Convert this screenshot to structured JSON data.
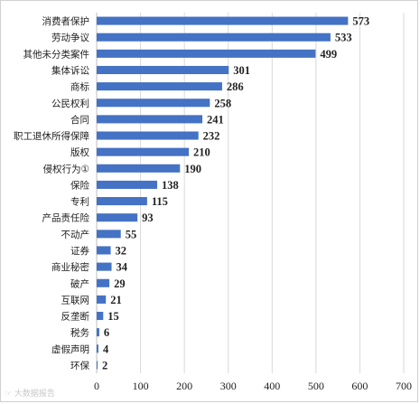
{
  "chart_data": {
    "type": "bar",
    "orientation": "horizontal",
    "categories": [
      "消费者保护",
      "劳动争议",
      "其他未分类案件",
      "集体诉讼",
      "商标",
      "公民权利",
      "合同",
      "职工退休所得保障",
      "版权",
      "侵权行为①",
      "保险",
      "专利",
      "产品责任险",
      "不动产",
      "证券",
      "商业秘密",
      "破产",
      "互联网",
      "反垄断",
      "税务",
      "虚假声明",
      "环保"
    ],
    "values": [
      573,
      533,
      499,
      301,
      286,
      258,
      241,
      232,
      210,
      190,
      138,
      115,
      93,
      55,
      32,
      34,
      29,
      21,
      15,
      6,
      4,
      2
    ],
    "xlim": [
      0,
      700
    ],
    "xticks": [
      0,
      100,
      200,
      300,
      400,
      500,
      600,
      700
    ],
    "grid": true,
    "bar_color": "#4472c4",
    "xlabel": "",
    "ylabel": ""
  },
  "watermark": "☞ 大数据报告"
}
